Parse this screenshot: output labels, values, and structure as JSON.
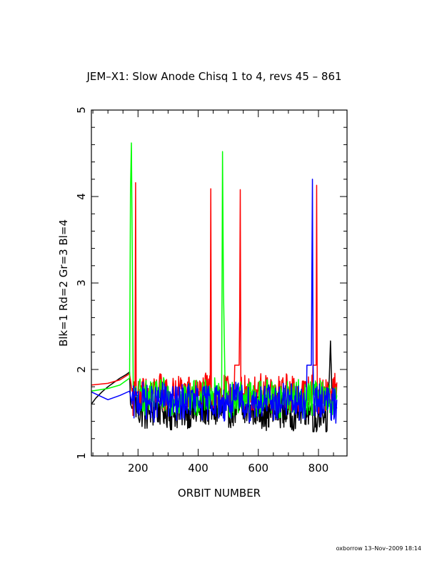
{
  "chart_data": {
    "type": "line",
    "title": "JEM–X1: Slow Anode Chisq 1 to 4, revs 45 – 861",
    "xlabel": "ORBIT NUMBER",
    "ylabel": "Blk=1 Rd=2 Gr=3 Bl=4",
    "xlim": [
      45,
      895
    ],
    "ylim": [
      1,
      5
    ],
    "x_ticks": [
      200,
      400,
      600,
      800
    ],
    "y_ticks": [
      1,
      2,
      3,
      4,
      5
    ],
    "grid": false,
    "legend": "none",
    "series": [
      {
        "color": "#000000",
        "x": [
          45,
          60,
          80,
          100,
          120,
          140,
          160,
          172,
          175,
          180,
          185,
          190,
          200,
          220,
          240,
          260,
          280,
          300,
          320,
          340,
          360,
          380,
          400,
          420,
          440,
          460,
          480,
          500,
          520,
          540,
          560,
          580,
          600,
          620,
          640,
          660,
          680,
          700,
          720,
          740,
          760,
          780,
          795,
          800,
          810,
          820,
          830,
          836,
          840,
          845,
          850,
          855,
          861
        ],
        "y": [
          1.6,
          1.67,
          1.74,
          1.8,
          1.85,
          1.9,
          1.94,
          1.97,
          1.6,
          1.55,
          1.6,
          1.7,
          1.55,
          1.6,
          1.5,
          1.65,
          1.55,
          1.6,
          1.5,
          1.62,
          1.55,
          1.6,
          1.5,
          1.65,
          1.55,
          1.6,
          1.5,
          1.62,
          1.55,
          1.6,
          1.5,
          1.65,
          1.55,
          1.6,
          1.5,
          1.62,
          1.55,
          1.6,
          1.5,
          1.65,
          1.55,
          1.6,
          1.3,
          1.55,
          1.6,
          1.5,
          1.55,
          1.9,
          2.33,
          1.7,
          1.55,
          1.6,
          1.55
        ]
      },
      {
        "color": "#ff0000",
        "x": [
          45,
          100,
          140,
          172,
          180,
          190,
          192,
          194,
          200,
          220,
          240,
          260,
          280,
          300,
          320,
          340,
          360,
          380,
          400,
          420,
          440,
          442,
          444,
          460,
          480,
          500,
          520,
          538,
          540,
          542,
          560,
          580,
          600,
          620,
          640,
          660,
          680,
          700,
          720,
          740,
          760,
          780,
          794,
          796,
          798,
          820,
          840,
          861
        ],
        "y": [
          1.82,
          1.84,
          1.88,
          1.95,
          1.75,
          1.7,
          4.16,
          1.7,
          1.75,
          1.8,
          1.7,
          1.85,
          1.75,
          1.8,
          1.7,
          1.85,
          1.75,
          1.8,
          1.7,
          1.85,
          1.75,
          4.09,
          1.75,
          1.8,
          1.7,
          1.85,
          1.75,
          2.6,
          4.08,
          1.75,
          1.8,
          1.7,
          1.85,
          1.75,
          1.8,
          1.7,
          1.85,
          1.75,
          1.8,
          1.7,
          1.85,
          1.75,
          4.13,
          1.8,
          1.7,
          1.8,
          1.75,
          1.85
        ]
      },
      {
        "color": "#00ff00",
        "x": [
          45,
          100,
          140,
          172,
          175,
          178,
          181,
          184,
          190,
          200,
          220,
          240,
          260,
          280,
          300,
          320,
          340,
          360,
          380,
          400,
          420,
          440,
          460,
          478,
          481,
          484,
          490,
          500,
          520,
          540,
          560,
          580,
          600,
          620,
          640,
          660,
          680,
          700,
          720,
          740,
          760,
          780,
          800,
          820,
          840,
          861
        ],
        "y": [
          1.75,
          1.78,
          1.82,
          1.9,
          4.08,
          4.62,
          3.3,
          1.8,
          1.75,
          1.7,
          1.8,
          1.65,
          1.75,
          1.7,
          1.8,
          1.65,
          1.75,
          1.7,
          1.8,
          1.65,
          1.75,
          1.7,
          1.8,
          1.65,
          4.52,
          2.95,
          1.7,
          1.75,
          1.65,
          1.8,
          1.7,
          1.75,
          1.65,
          1.8,
          1.7,
          1.75,
          1.65,
          1.8,
          1.7,
          1.75,
          1.65,
          1.8,
          1.7,
          1.75,
          1.65,
          1.7
        ]
      },
      {
        "color": "#0000ff",
        "x": [
          45,
          100,
          140,
          172,
          180,
          190,
          200,
          220,
          240,
          260,
          280,
          300,
          320,
          340,
          360,
          380,
          400,
          420,
          440,
          460,
          480,
          500,
          520,
          540,
          560,
          580,
          600,
          620,
          640,
          660,
          680,
          700,
          720,
          740,
          760,
          778,
          780,
          782,
          784,
          800,
          820,
          840,
          861
        ],
        "y": [
          1.74,
          1.65,
          1.7,
          1.75,
          1.6,
          1.7,
          1.65,
          1.75,
          1.6,
          1.7,
          1.65,
          1.75,
          1.6,
          1.7,
          1.65,
          1.75,
          1.6,
          1.7,
          1.65,
          1.75,
          1.6,
          1.7,
          1.65,
          1.75,
          1.6,
          1.7,
          1.65,
          1.75,
          1.6,
          1.7,
          1.65,
          1.75,
          1.6,
          1.7,
          1.65,
          3.05,
          4.2,
          2.1,
          1.7,
          1.65,
          1.75,
          1.6,
          1.65
        ]
      }
    ]
  },
  "footer": {
    "credit": "oxborrow 13–Nov–2009 18:14"
  }
}
